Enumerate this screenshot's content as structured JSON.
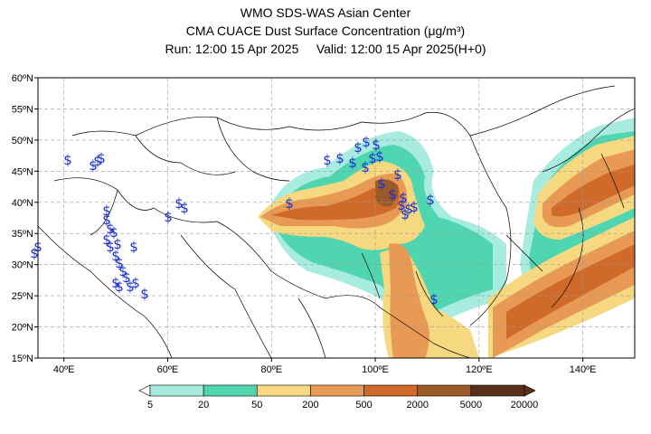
{
  "header": {
    "line1": "WMO SDS-WAS Asian Center",
    "line2": "CMA CUACE Dust Surface Concentration (μg/m³)",
    "line3": "Run: 12:00 15 Apr 2025     Valid: 12:00 15 Apr 2025(H+0)"
  },
  "map": {
    "lon_range": [
      35,
      150
    ],
    "lat_range": [
      15,
      60
    ],
    "lat_ticks": [
      "15ºN",
      "20ºN",
      "25ºN",
      "30ºN",
      "35ºN",
      "40ºN",
      "45ºN",
      "50ºN",
      "55ºN",
      "60ºN"
    ],
    "lon_ticks": [
      "40ºE",
      "60ºE",
      "80ºE",
      "100ºE",
      "120ºE",
      "140ºE"
    ],
    "gridlines": true,
    "station_symbol": "$",
    "station_color": "#1a2fd0"
  },
  "legend": {
    "labels": [
      "5",
      "20",
      "50",
      "200",
      "500",
      "2000",
      "5000",
      "20000"
    ],
    "colors": [
      "#a8ece0",
      "#4fd6b0",
      "#f5d880",
      "#e89a55",
      "#d06a2a",
      "#9a5a2a",
      "#5a3018"
    ]
  }
}
